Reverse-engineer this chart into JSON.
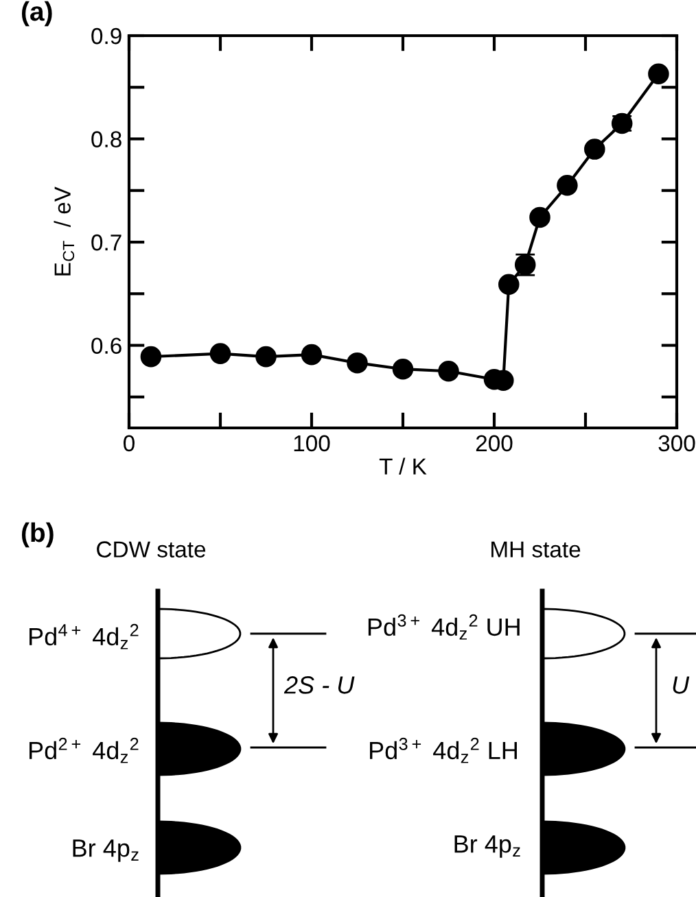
{
  "chart_data": {
    "type": "line",
    "xlabel": "T / K",
    "ylabel": "E$_{CT}$  / eV",
    "x": [
      12,
      50,
      75,
      100,
      125,
      150,
      175,
      200,
      205,
      208,
      217,
      225,
      240,
      255,
      270,
      290
    ],
    "series": [
      {
        "color": "#000000",
        "values": [
          0.589,
          0.592,
          0.589,
          0.591,
          0.583,
          0.577,
          0.575,
          0.567,
          0.566,
          0.659,
          0.678,
          0.724,
          0.755,
          0.79,
          0.815,
          0.863
        ],
        "errors": [
          null,
          null,
          null,
          null,
          null,
          null,
          null,
          null,
          null,
          null,
          0.01,
          null,
          null,
          null,
          0.007,
          null
        ]
      }
    ],
    "marker": "circle",
    "line_style": "solid",
    "grid": false,
    "legend": false,
    "xlim": [
      0,
      300
    ],
    "ylim": [
      0.52,
      0.9
    ],
    "xticks": [
      0,
      {
        "value": 50,
        "label": null
      },
      100,
      {
        "value": 150,
        "label": null
      },
      200,
      {
        "value": 250,
        "label": null
      },
      300
    ],
    "yticks": [
      {
        "value": 0.55,
        "label": null
      },
      0.6,
      {
        "value": 0.65,
        "label": null
      },
      0.7,
      {
        "value": 0.75,
        "label": null
      },
      0.8,
      {
        "value": 0.85,
        "label": null
      },
      0.9
    ],
    "annotations": [
      "(a)",
      "(b)",
      "CDW state",
      "MH state",
      "Pd$^{4+}$ 4d$_{z}$$^{2}$",
      "Pd$^{2+}$ 4d$_{z}$$^{2}$",
      "Br 4p$_{z}$",
      "2S - U",
      "Pd$^{3+}$ 4d$_{z}$$^{2}$ UH",
      "Pd$^{3+}$ 4d$_{z}$$^{2}$ LH",
      "Br 4p$_{z}$",
      "U"
    ]
  }
}
